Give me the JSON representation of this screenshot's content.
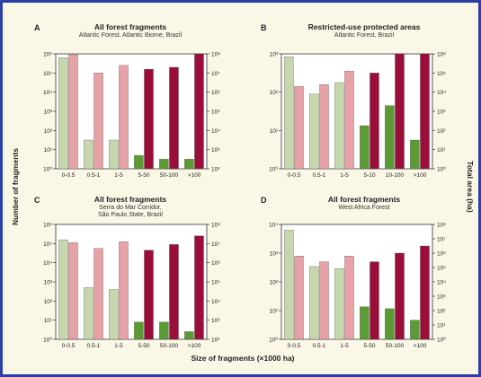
{
  "axis_labels": {
    "y_left": "Number of fragments",
    "y_right": "Total area (ha)",
    "x_bottom": "Size of fragments (×1000 ha)"
  },
  "colors": {
    "count_light": "#c6d6ad",
    "count_dark": "#5a9b35",
    "area_light": "#e6a2a6",
    "area_dark": "#9a0f3a",
    "frame": "#2b3fa6",
    "background": "#fbf7e6"
  },
  "chart_data": [
    {
      "type": "bar",
      "panel": "A",
      "title": "All forest fragments",
      "subtitle": [
        "Atlantic Forest, Atlantic Biome, Brazil"
      ],
      "categories": [
        "0-0.5",
        "0.5-1",
        "1-5",
        "5-50",
        "50-100",
        ">100"
      ],
      "y_left_ticks": [
        "10⁶",
        "10⁵",
        "10⁴",
        "10³",
        "10²",
        "10¹",
        "10⁰"
      ],
      "y_right_ticks": [
        "10⁸",
        "10⁷",
        "10⁶",
        "10⁵",
        "10⁴",
        "10³",
        "10²"
      ],
      "log_scale": true,
      "y_left_range_exp": [
        0,
        6
      ],
      "y_right_range_exp": [
        2,
        8
      ],
      "dark_from_index": 3,
      "series": [
        {
          "values_exp": [
            5.8,
            1.5,
            1.5,
            0.7,
            0.5,
            0.5
          ]
        },
        {
          "values_exp": [
            7.95,
            7.0,
            7.4,
            7.2,
            7.3,
            8.0
          ]
        }
      ]
    },
    {
      "type": "bar",
      "panel": "B",
      "title": "Restricted-use protected areas",
      "subtitle": [
        "Atlantic Forest, Brazil"
      ],
      "categories": [
        "0-0.5",
        "0.5-1",
        "1-5",
        "5-10",
        "10-100",
        ">100"
      ],
      "y_left_ticks": [
        "10³",
        "10²",
        "10¹",
        "10⁰"
      ],
      "y_right_ticks": [
        "10⁶",
        "10⁵",
        "10⁴",
        "10³",
        "10²",
        "10¹",
        "10⁰"
      ],
      "log_scale": true,
      "y_left_range_exp": [
        0,
        2
      ],
      "y_right_range_exp": [
        0,
        6
      ],
      "dark_from_index": 3,
      "series": [
        {
          "values_exp": [
            1.95,
            1.3,
            1.5,
            0.75,
            1.1,
            0.5
          ]
        },
        {
          "values_exp": [
            4.3,
            4.4,
            5.1,
            5.0,
            6.0,
            6.0
          ]
        }
      ]
    },
    {
      "type": "bar",
      "panel": "C",
      "title": "All forest fragments",
      "subtitle": [
        "Serra do Mar Corridor,",
        "São Paulo State, Brazil"
      ],
      "categories": [
        "0-0.5",
        "0.5-1",
        "1-5",
        "5-50",
        "50-100",
        ">100"
      ],
      "y_left_ticks": [
        "10⁶",
        "10⁵",
        "10⁴",
        "10³",
        "10²",
        "10¹",
        "10⁰"
      ],
      "y_right_ticks": [
        "10⁸",
        "10⁷",
        "10⁶",
        "10⁵",
        "10⁴",
        "10³",
        "10²"
      ],
      "log_scale": true,
      "y_left_range_exp": [
        0,
        6
      ],
      "y_right_range_exp": [
        2,
        8
      ],
      "dark_from_index": 3,
      "series": [
        {
          "values_exp": [
            5.2,
            2.7,
            2.6,
            0.9,
            0.9,
            0.4
          ]
        },
        {
          "values_exp": [
            7.05,
            6.75,
            7.1,
            6.65,
            6.95,
            7.4
          ]
        }
      ]
    },
    {
      "type": "bar",
      "panel": "D",
      "title": "All forest fragments",
      "subtitle": [
        "West Africa Forest"
      ],
      "categories": [
        "0-0.5",
        "0.5-1",
        "1-5",
        "5-50",
        "50-100",
        ">100"
      ],
      "y_left_ticks": [
        "10⁴",
        "10³",
        "10²",
        "10¹",
        "10⁰"
      ],
      "y_right_ticks": [
        "10⁸",
        "10⁷",
        "10⁶",
        "10⁵",
        "10⁴",
        "10³",
        "10²",
        "10¹",
        "10⁰"
      ],
      "log_scale": true,
      "y_left_range_exp": [
        0,
        3
      ],
      "y_right_range_exp": [
        0,
        8
      ],
      "dark_from_index": 3,
      "series": [
        {
          "values_exp": [
            2.85,
            1.9,
            1.85,
            0.85,
            0.8,
            0.5
          ]
        },
        {
          "values_exp": [
            5.8,
            5.4,
            5.8,
            5.4,
            6.0,
            6.5
          ]
        }
      ]
    }
  ]
}
